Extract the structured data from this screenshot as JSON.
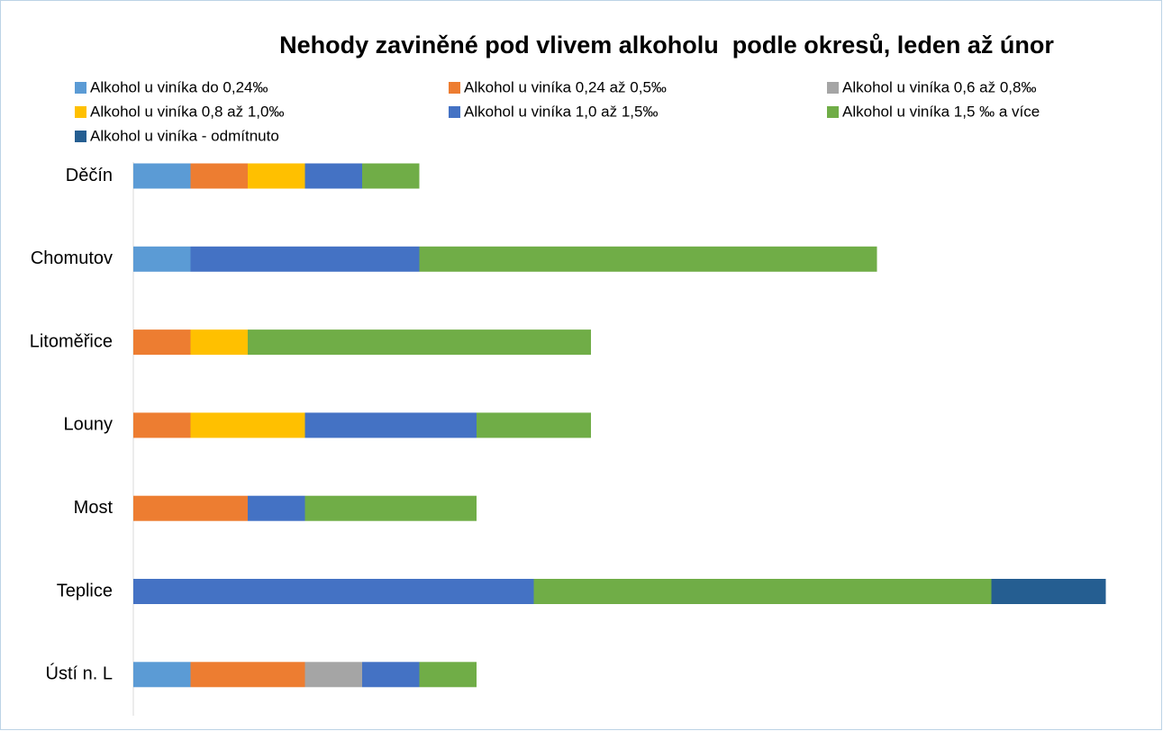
{
  "chart_data": {
    "type": "stacked-bar-horizontal",
    "title": "Nehody zaviněné pod vlivem alkoholu  podle okresů, leden až únor",
    "categories": [
      "Děčín",
      "Chomutov",
      "Litoměřice",
      "Louny",
      "Most",
      "Teplice",
      "Ústí n. L"
    ],
    "series": [
      {
        "name": "Alkohol u viníka do 0,24‰",
        "color": "#5b9bd5",
        "values": [
          1,
          1,
          0,
          0,
          0,
          0,
          1
        ]
      },
      {
        "name": "Alkohol u viníka 0,24 až 0,5‰",
        "color": "#ed7d31",
        "values": [
          1,
          0,
          1,
          1,
          2,
          0,
          2
        ]
      },
      {
        "name": "Alkohol u viníka 0,6 až 0,8‰",
        "color": "#a5a5a5",
        "values": [
          0,
          0,
          0,
          0,
          0,
          0,
          1
        ]
      },
      {
        "name": "Alkohol u viníka 0,8 až 1,0‰",
        "color": "#ffc000",
        "values": [
          1,
          0,
          1,
          2,
          0,
          0,
          0
        ]
      },
      {
        "name": "Alkohol u viníka 1,0 až 1,5‰",
        "color": "#4472c4",
        "values": [
          1,
          4,
          0,
          3,
          1,
          7,
          1
        ]
      },
      {
        "name": "Alkohol u viníka 1,5 ‰ a více",
        "color": "#70ad47",
        "values": [
          1,
          8,
          6,
          2,
          3,
          8,
          1
        ]
      },
      {
        "name": "Alkohol u viníka - odmítnuto",
        "color": "#255e91",
        "values": [
          0,
          0,
          0,
          0,
          0,
          2,
          0
        ]
      }
    ],
    "legend": "top"
  }
}
